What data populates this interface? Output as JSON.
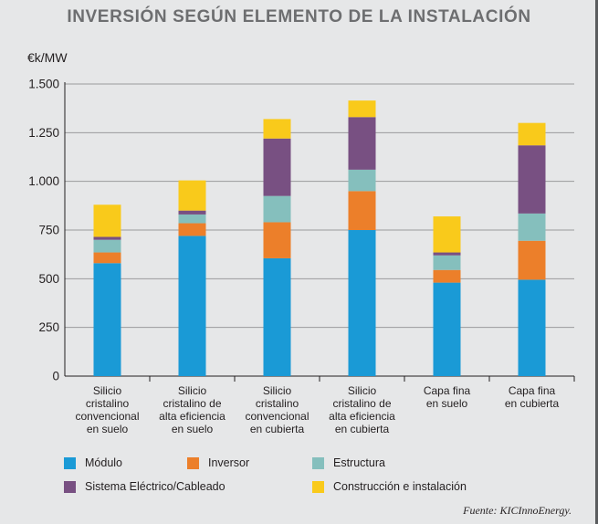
{
  "chart_data": {
    "type": "bar",
    "stacked": true,
    "title": "INVERSIÓN SEGÚN ELEMENTO DE LA INSTALACIÓN",
    "ylabel": "€k/MW",
    "ylim": [
      0,
      1500
    ],
    "yticks": [
      0,
      250,
      500,
      750,
      1000,
      1250,
      1500
    ],
    "ytick_labels": [
      "0",
      "250",
      "500",
      "750",
      "1.000",
      "1.250",
      "1.500"
    ],
    "grid": true,
    "legend_position": "bottom",
    "categories": [
      [
        "Silicio",
        "cristalino",
        "convencional",
        "en suelo"
      ],
      [
        "Silicio",
        "cristalino de",
        "alta eficiencia",
        "en suelo"
      ],
      [
        "Silicio",
        "cristalino",
        "convencional",
        "en cubierta"
      ],
      [
        "Silicio",
        "cristalino de",
        "alta eficiencia",
        "en cubierta"
      ],
      [
        "Capa fina",
        "en suelo"
      ],
      [
        "Capa fina",
        "en cubierta"
      ]
    ],
    "series": [
      {
        "name": "Módulo",
        "color": "#1a9ad6",
        "values": [
          580,
          720,
          605,
          750,
          480,
          495
        ]
      },
      {
        "name": "Inversor",
        "color": "#ec7f2a",
        "values": [
          55,
          65,
          185,
          200,
          65,
          200
        ]
      },
      {
        "name": "Estructura",
        "color": "#85bfbd",
        "values": [
          65,
          45,
          135,
          110,
          75,
          140
        ]
      },
      {
        "name": "Sistema Eléctrico/Cableado",
        "color": "#785082",
        "values": [
          15,
          20,
          295,
          270,
          15,
          350
        ]
      },
      {
        "name": "Construcción e instalación",
        "color": "#f9ca1b",
        "values": [
          165,
          155,
          100,
          85,
          185,
          115
        ]
      }
    ]
  },
  "source": "Fuente: KICInnoEnergy."
}
